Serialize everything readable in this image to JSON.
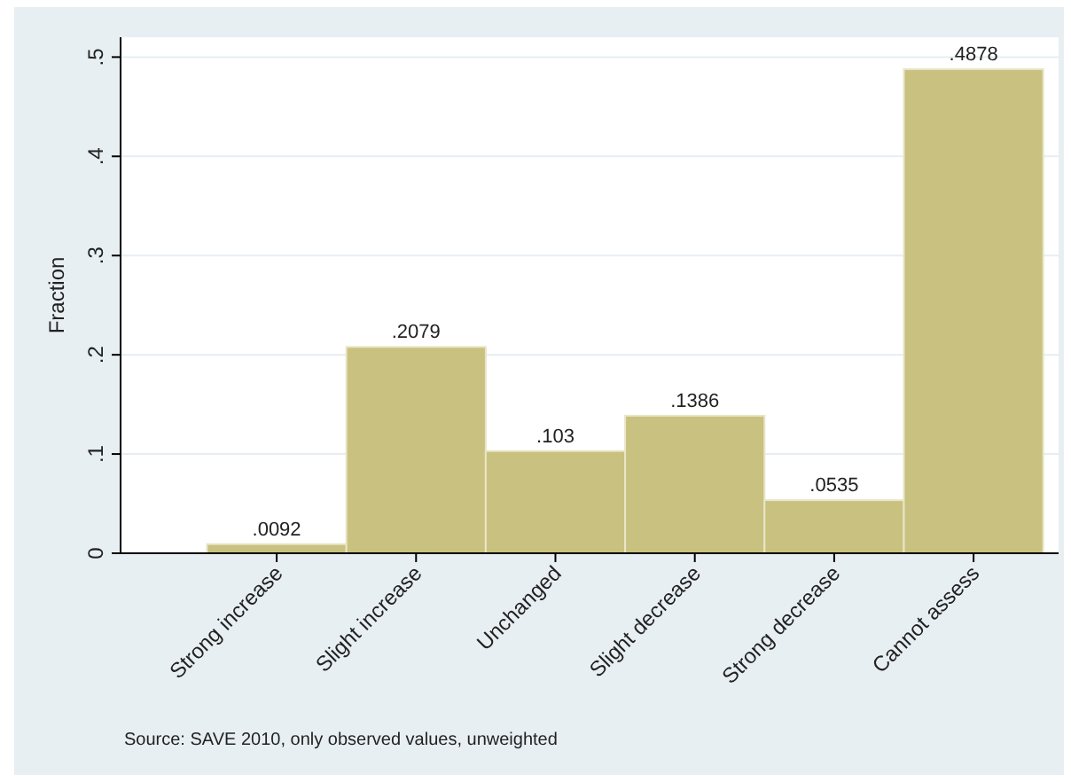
{
  "chart_data": {
    "type": "bar",
    "ylabel": "Fraction",
    "categories": [
      "Strong increase",
      "Slight increase",
      "Unchanged",
      "Slight decrease",
      "Strong decrease",
      "Cannot assess"
    ],
    "values": [
      0.0092,
      0.2079,
      0.103,
      0.1386,
      0.0535,
      0.4878
    ],
    "value_labels": [
      ".0092",
      ".2079",
      ".103",
      ".1386",
      ".0535",
      ".4878"
    ],
    "color": "#c9c17f",
    "ylim": [
      0,
      0.52
    ],
    "yticks": [
      {
        "value": 0,
        "label": "0"
      },
      {
        "value": 0.1,
        "label": ".1"
      },
      {
        "value": 0.2,
        "label": ".2"
      },
      {
        "value": 0.3,
        "label": ".3"
      },
      {
        "value": 0.4,
        "label": ".4"
      },
      {
        "value": 0.5,
        "label": ".5"
      }
    ],
    "grid": "y",
    "annotations": [
      "Source: SAVE 2010, only observed values, unweighted"
    ]
  }
}
